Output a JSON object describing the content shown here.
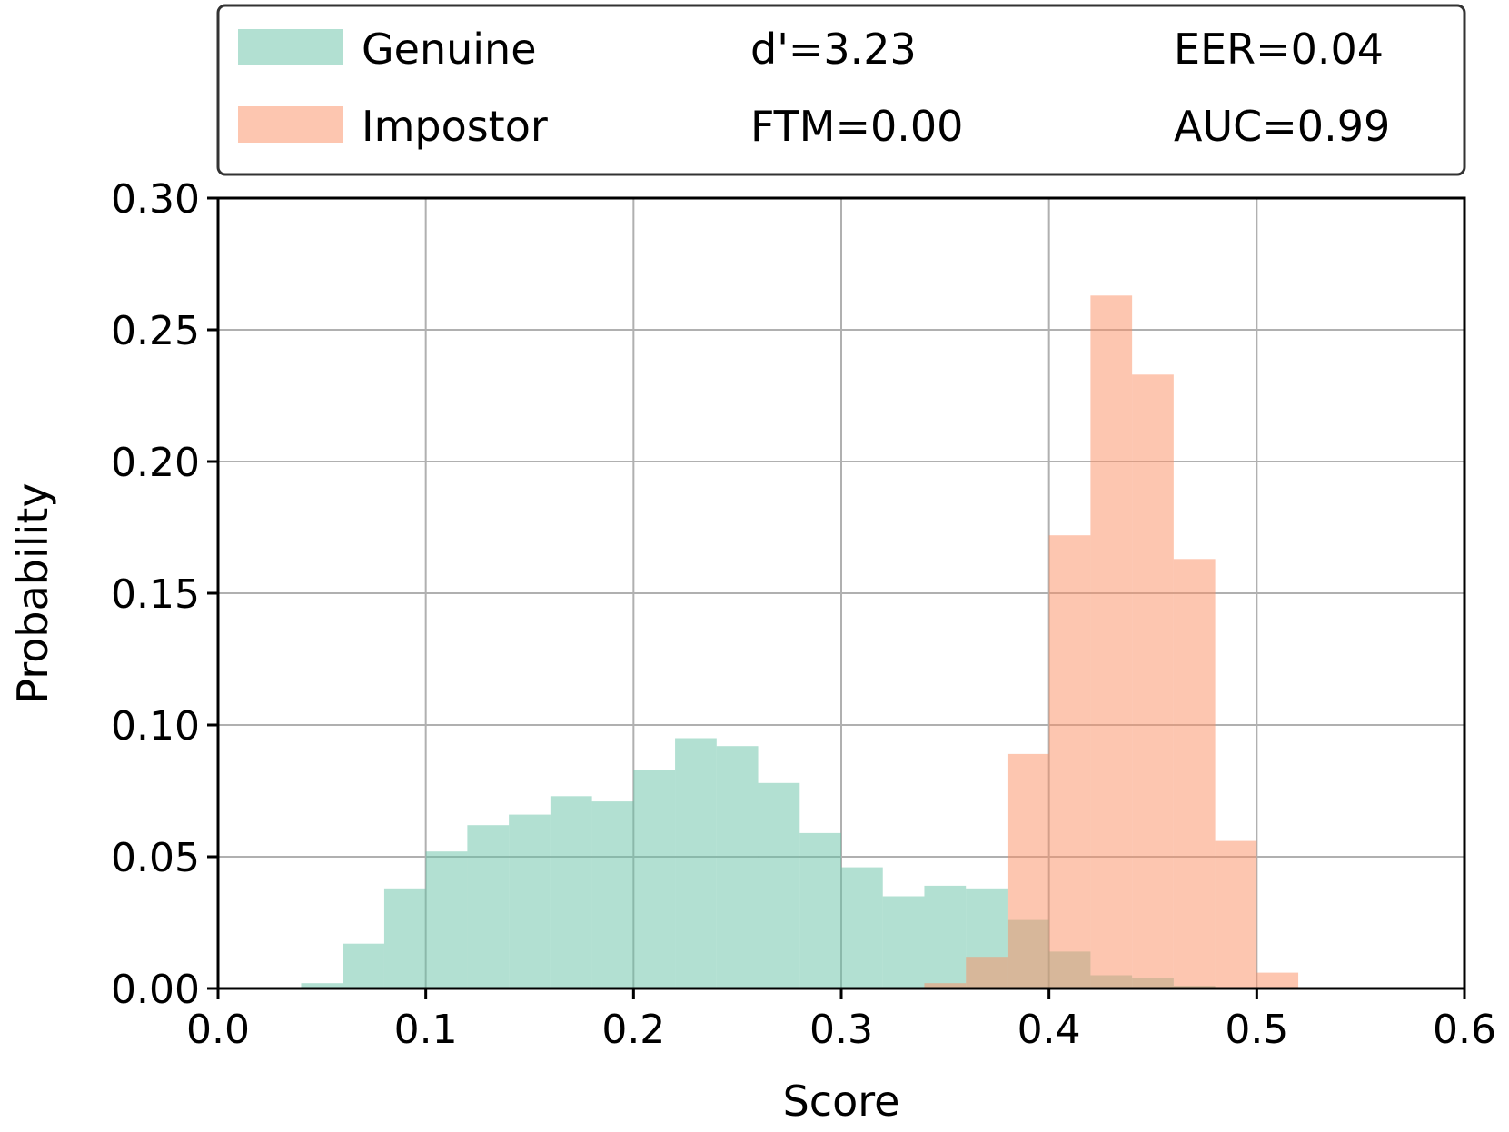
{
  "chart_data": {
    "type": "bar",
    "subtype": "overlapping-histogram",
    "xlabel": "Score",
    "ylabel": "Probability",
    "xlim": [
      0.0,
      0.6
    ],
    "ylim": [
      0.0,
      0.3
    ],
    "xticks": [
      "0.0",
      "0.1",
      "0.2",
      "0.3",
      "0.4",
      "0.5",
      "0.6"
    ],
    "yticks": [
      "0.00",
      "0.05",
      "0.10",
      "0.15",
      "0.20",
      "0.25",
      "0.30"
    ],
    "grid": true,
    "legend_position": "above plot",
    "bin_width": 0.02,
    "series": [
      {
        "name": "Genuine",
        "color": "#66c2a5",
        "bin_starts": [
          0.04,
          0.06,
          0.08,
          0.1,
          0.12,
          0.14,
          0.16,
          0.18,
          0.2,
          0.22,
          0.24,
          0.26,
          0.28,
          0.3,
          0.32,
          0.34,
          0.36,
          0.38,
          0.4,
          0.42,
          0.44,
          0.46
        ],
        "values": [
          0.002,
          0.017,
          0.038,
          0.052,
          0.062,
          0.066,
          0.073,
          0.071,
          0.083,
          0.095,
          0.092,
          0.078,
          0.059,
          0.046,
          0.035,
          0.039,
          0.038,
          0.026,
          0.014,
          0.005,
          0.004,
          0.001
        ]
      },
      {
        "name": "Impostor",
        "color": "#fc8d62",
        "bin_starts": [
          0.34,
          0.36,
          0.38,
          0.4,
          0.42,
          0.44,
          0.46,
          0.48,
          0.5
        ],
        "values": [
          0.002,
          0.012,
          0.089,
          0.172,
          0.263,
          0.233,
          0.163,
          0.056,
          0.006
        ]
      }
    ],
    "legend_stats": {
      "row1": [
        "d'=3.23",
        "EER=0.04"
      ],
      "row2": [
        "FTM=0.00",
        "AUC=0.99"
      ]
    }
  }
}
